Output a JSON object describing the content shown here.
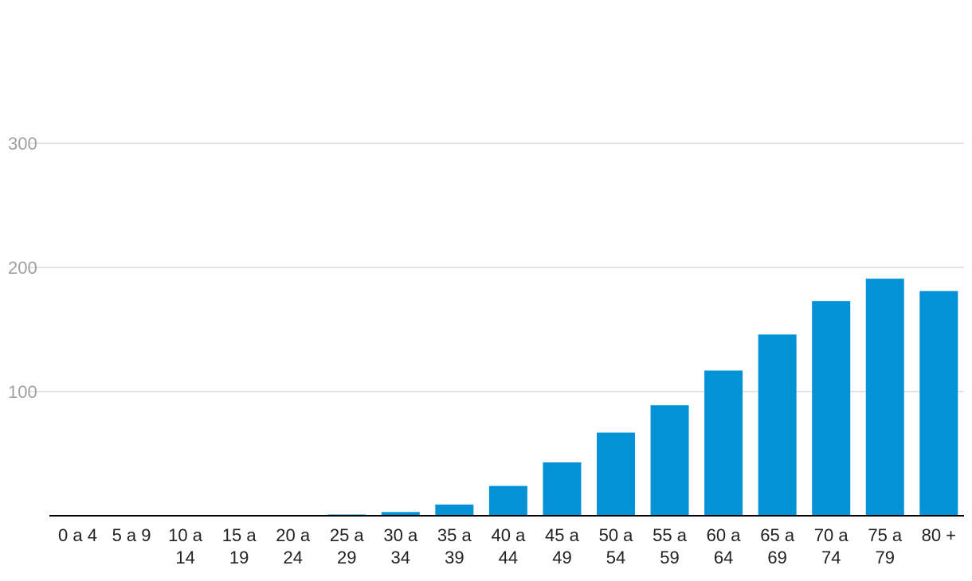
{
  "chart_data": {
    "type": "bar",
    "title": "",
    "xlabel": "",
    "ylabel": "",
    "ylim": [
      0,
      300
    ],
    "yticks": [
      100,
      200,
      300
    ],
    "grid": true,
    "legend": "none",
    "colors": {
      "bar": "#0392d6",
      "grid": "#dcdcdc",
      "axis": "#000000",
      "ytick_text": "#a0a0a0",
      "xtick_text": "#222222"
    },
    "categories": [
      [
        "0 a 4"
      ],
      [
        "5 a 9"
      ],
      [
        "10 a",
        "14"
      ],
      [
        "15 a",
        "19"
      ],
      [
        "20 a",
        "24"
      ],
      [
        "25 a",
        "29"
      ],
      [
        "30 a",
        "34"
      ],
      [
        "35 a",
        "39"
      ],
      [
        "40 a",
        "44"
      ],
      [
        "45 a",
        "49"
      ],
      [
        "50 a",
        "54"
      ],
      [
        "55 a",
        "59"
      ],
      [
        "60 a",
        "64"
      ],
      [
        "65 a",
        "69"
      ],
      [
        "70 a",
        "74"
      ],
      [
        "75 a",
        "79"
      ],
      [
        "80 +"
      ]
    ],
    "values": [
      0,
      0,
      0,
      0,
      0,
      1,
      3,
      9,
      24,
      43,
      67,
      89,
      117,
      146,
      173,
      191,
      181
    ]
  }
}
